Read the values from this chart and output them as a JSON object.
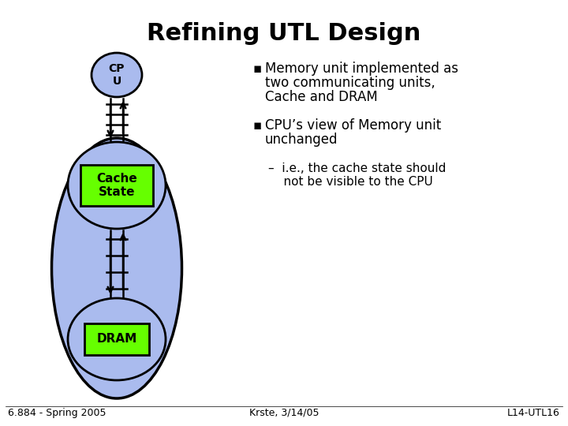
{
  "title": "Refining UTL Design",
  "title_fontsize": 22,
  "background_color": "#ffffff",
  "cpu_circle_color": "#aabbee",
  "cpu_circle_edge": "#000000",
  "memory_ellipse_color": "#aabbee",
  "memory_ellipse_edge": "#000000",
  "cache_circle_color": "#aabbee",
  "cache_circle_edge": "#000000",
  "dram_circle_color": "#aabbee",
  "dram_circle_edge": "#000000",
  "cache_box_color": "#66ff00",
  "cache_box_edge": "#000000",
  "dram_box_color": "#66ff00",
  "dram_box_edge": "#000000",
  "bullet_char": "§",
  "bullet1_text": "Memory unit implemented as\ntwo communicating units,\nCache and DRAM",
  "bullet2_text": "CPU’s view of Memory unit\nunchanged",
  "sub_bullet_text": "–  i.e., the cache state should\n    not be visible to the CPU",
  "footer_left": "6.884 - Spring 2005",
  "footer_center": "Krste, 3/14/05",
  "footer_right": "L14-UTL16",
  "text_font_size": 12,
  "footer_font_size": 9,
  "cpu_label": "CP\nU",
  "cache_label": "Cache\nState",
  "dram_label": "DRAM"
}
